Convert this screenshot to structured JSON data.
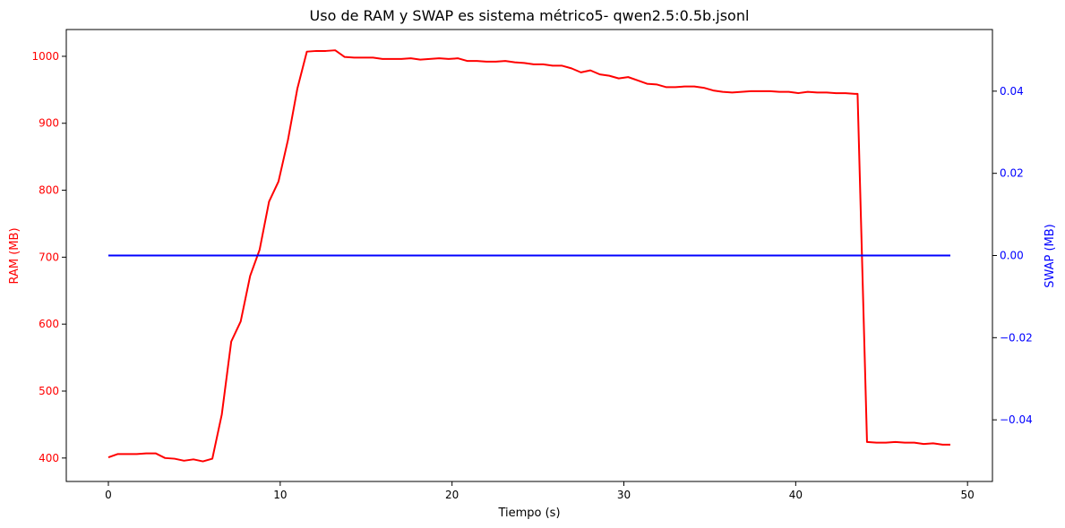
{
  "chart_data": {
    "type": "line",
    "title": "Uso de RAM y  SWAP es sistema métrico5- qwen2.5:0.5b.jsonl",
    "xlabel": "Tiempo (s)",
    "ylabel_left": "RAM (MB)",
    "ylabel_right": "SWAP (MB)",
    "xlim": [
      -2.45,
      51.45
    ],
    "ylim_left": [
      365,
      1040
    ],
    "ylim_right": [
      -0.055,
      0.055
    ],
    "x_ticks": [
      0,
      10,
      20,
      30,
      40,
      50
    ],
    "y_left_ticks": [
      400,
      500,
      600,
      700,
      800,
      900,
      1000
    ],
    "y_right_ticks": [
      "0.04",
      "0.02",
      "0.00",
      "−0.02",
      "−0.04"
    ],
    "y_right_tick_values": [
      0.04,
      0.02,
      0.0,
      -0.02,
      -0.04
    ],
    "grid": false,
    "colors": {
      "ram": "#ff0000",
      "swap": "#0000ff",
      "axis": "#000000"
    },
    "series": [
      {
        "axis": "left",
        "color": "#ff0000",
        "x": [
          0.0,
          0.55,
          1.1,
          1.65,
          2.2,
          2.75,
          3.3,
          3.85,
          4.4,
          4.95,
          5.5,
          6.05,
          6.6,
          7.15,
          7.7,
          8.25,
          8.8,
          9.35,
          9.9,
          10.45,
          11.0,
          11.55,
          12.1,
          12.65,
          13.2,
          13.75,
          14.3,
          14.85,
          15.4,
          15.95,
          16.5,
          17.05,
          17.6,
          18.15,
          18.7,
          19.25,
          19.8,
          20.35,
          20.9,
          21.45,
          22.0,
          22.55,
          23.1,
          23.65,
          24.2,
          24.75,
          25.3,
          25.85,
          26.4,
          26.95,
          27.5,
          28.05,
          28.6,
          29.15,
          29.7,
          30.25,
          30.8,
          31.35,
          31.9,
          32.45,
          33.0,
          33.55,
          34.1,
          34.65,
          35.2,
          35.75,
          36.3,
          36.85,
          37.4,
          37.95,
          38.5,
          39.05,
          39.6,
          40.15,
          40.7,
          41.25,
          41.8,
          42.35,
          42.9,
          43.45,
          43.6,
          44.15,
          44.7,
          45.25,
          45.8,
          46.35,
          46.9,
          47.45,
          48.0,
          48.55,
          49.0
        ],
        "values": [
          401,
          406,
          406,
          406,
          407,
          407,
          400,
          399,
          396,
          398,
          395,
          399,
          465,
          574,
          604,
          672,
          711,
          783,
          813,
          875,
          952,
          1007,
          1008,
          1008,
          1009,
          999,
          998,
          998,
          998,
          996,
          996,
          996,
          997,
          995,
          996,
          997,
          996,
          997,
          993,
          993,
          992,
          992,
          993,
          991,
          990,
          988,
          988,
          986,
          986,
          982,
          976,
          979,
          973,
          971,
          967,
          969,
          964,
          959,
          958,
          954,
          954,
          955,
          955,
          953,
          949,
          947,
          946,
          947,
          948,
          948,
          948,
          947,
          947,
          945,
          947,
          946,
          946,
          945,
          945,
          944,
          944,
          424,
          423,
          423,
          424,
          423,
          423,
          421,
          422,
          420,
          420
        ]
      },
      {
        "axis": "right",
        "color": "#0000ff",
        "x": [
          0.0,
          49.0
        ],
        "values": [
          0.0,
          0.0
        ]
      }
    ]
  }
}
